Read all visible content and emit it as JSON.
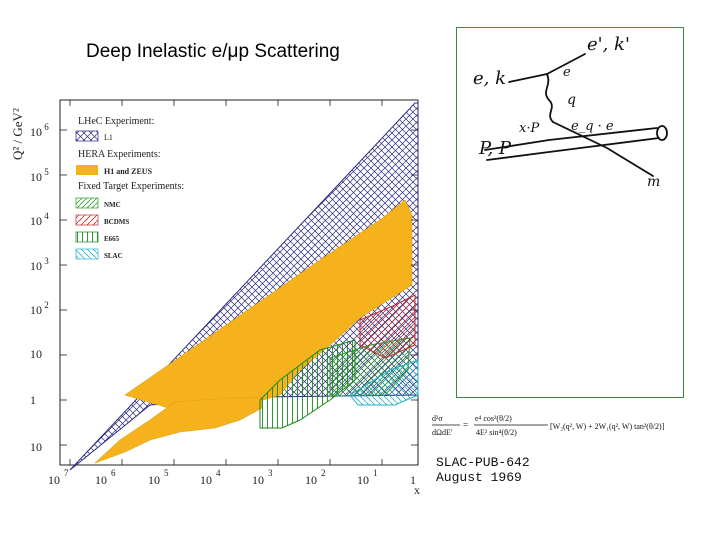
{
  "title": "Deep Inelastic e/μp Scattering",
  "plot": {
    "y_axis_label": "Q² / GeV²",
    "x_axis_label": "x",
    "y_ticks": [
      {
        "base": "10",
        "exp": "6"
      },
      {
        "base": "10",
        "exp": "5"
      },
      {
        "base": "10",
        "exp": "4"
      },
      {
        "base": "10",
        "exp": "3"
      },
      {
        "base": "10",
        "exp": "2"
      },
      {
        "base": "10",
        "exp": ""
      },
      {
        "base": "1",
        "exp": ""
      },
      {
        "base": "10",
        "exp": ""
      }
    ],
    "x_ticks": [
      {
        "base": "10",
        "exp": "7"
      },
      {
        "base": "10",
        "exp": "6"
      },
      {
        "base": "10",
        "exp": "5"
      },
      {
        "base": "10",
        "exp": "4"
      },
      {
        "base": "10",
        "exp": "3"
      },
      {
        "base": "10",
        "exp": "2"
      },
      {
        "base": "10",
        "exp": "1"
      },
      {
        "base": "1",
        "exp": ""
      }
    ],
    "legend": {
      "lhec_header": "LHeC Experiment:",
      "lhec_l1": "L1",
      "hera_header": "HERA Experiments:",
      "hera_entry": "H1 and ZEUS",
      "fixed_header": "Fixed Target Experiments:",
      "nmc": "NMC",
      "bcdms": "BCDMS",
      "e665": "E665",
      "slac": "SLAC"
    },
    "colors": {
      "lhec": "#2a2a80",
      "hera": "#f6b21c",
      "nmc": "#2aa02a",
      "bcdms": "#c02828",
      "e665": "#1a8a1a",
      "slac": "#23b0c8"
    }
  },
  "feynman": {
    "labels": [
      "e, k",
      "e', k'",
      "e",
      "q",
      "e_q · e",
      "x·P",
      "P, P",
      "m"
    ]
  },
  "formula": {
    "lhs_num": "d²σ",
    "lhs_den": "dΩdE'",
    "coef_num": "e⁴ cos²(θ/2)",
    "coef_den": "4E² sin⁴(θ/2)",
    "bracket": "[W₂(q², W) + 2W₁(q², W) tan²(θ/2)]"
  },
  "publication": {
    "id": "SLAC-PUB-642",
    "date": "August 1969"
  }
}
